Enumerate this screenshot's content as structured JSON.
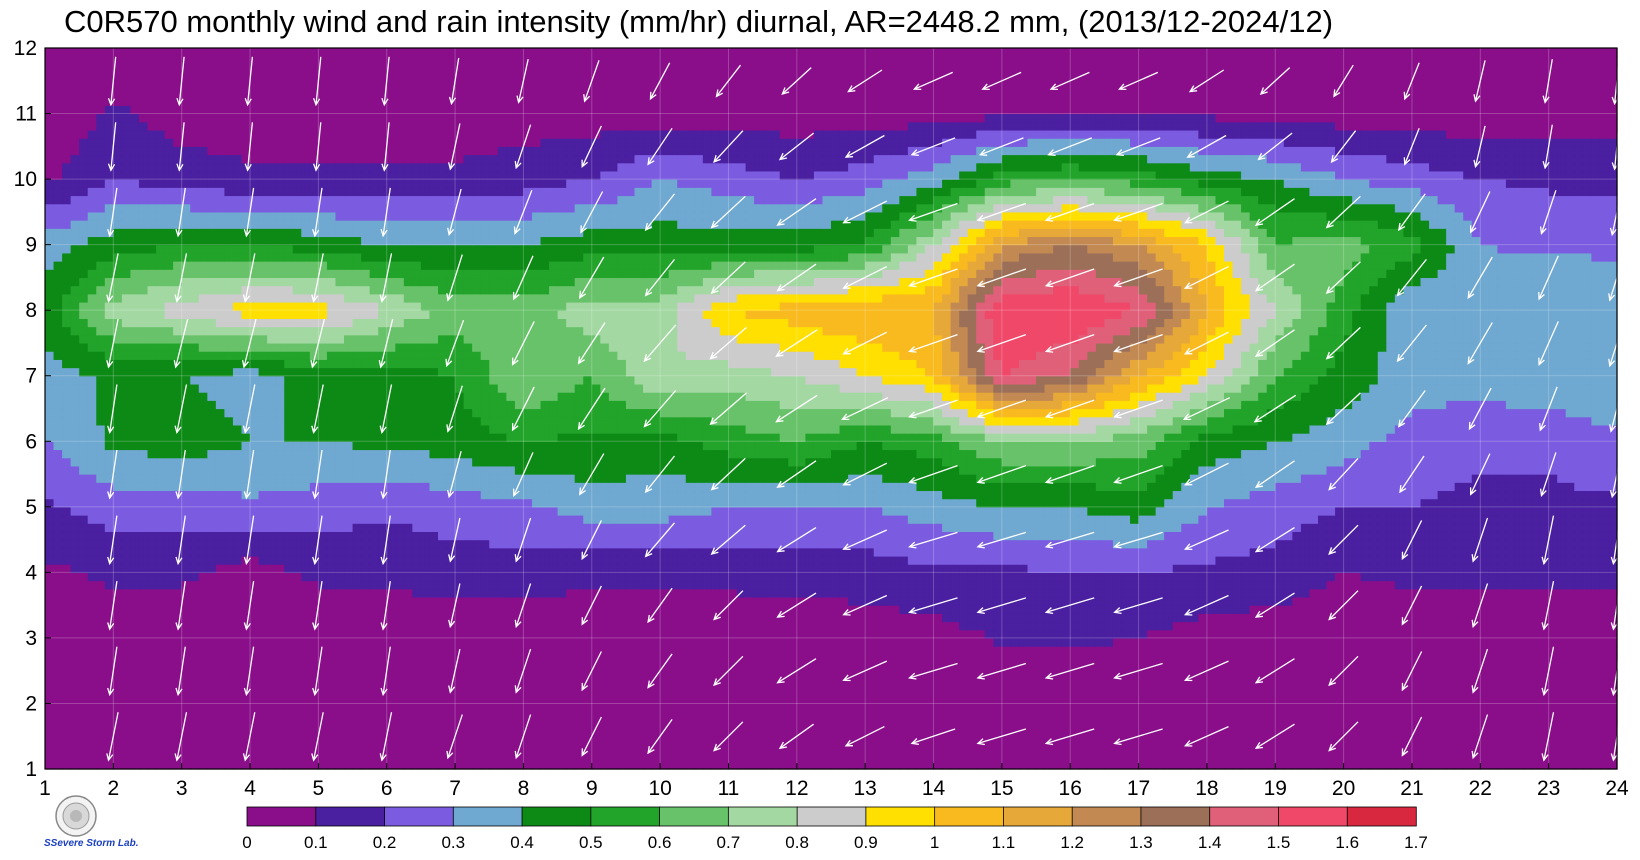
{
  "title": "C0R570 monthly wind and rain intensity (mm/hr) diurnal, AR=2448.2 mm, (2013/12-2024/12)",
  "logo_text": "SSevere Storm Lab.",
  "chart_data": {
    "type": "heatmap",
    "subtype": "filled-contour-with-wind-vectors",
    "title": "C0R570 monthly wind and rain intensity (mm/hr) diurnal, AR=2448.2 mm, (2013/12-2024/12)",
    "x": [
      1,
      2,
      3,
      4,
      5,
      6,
      7,
      8,
      9,
      10,
      11,
      12,
      13,
      14,
      15,
      16,
      17,
      18,
      19,
      20,
      21,
      22,
      23,
      24
    ],
    "y": [
      1,
      2,
      3,
      4,
      5,
      6,
      7,
      8,
      9,
      10,
      11,
      12
    ],
    "xlim": [
      1,
      24
    ],
    "ylim": [
      1,
      12
    ],
    "xticks": [
      "1",
      "2",
      "3",
      "4",
      "5",
      "6",
      "7",
      "8",
      "9",
      "10",
      "11",
      "12",
      "13",
      "14",
      "15",
      "16",
      "17",
      "18",
      "19",
      "20",
      "21",
      "22",
      "23",
      "24"
    ],
    "yticks": [
      "1",
      "2",
      "3",
      "4",
      "5",
      "6",
      "7",
      "8",
      "9",
      "10",
      "11",
      "12"
    ],
    "grid": true,
    "colorbar": {
      "orientation": "horizontal",
      "placement": "bottom",
      "levels": [
        "0",
        "0.1",
        "0.2",
        "0.3",
        "0.4",
        "0.5",
        "0.6",
        "0.7",
        "0.8",
        "0.9",
        "1",
        "1.1",
        "1.2",
        "1.3",
        "1.4",
        "1.5",
        "1.6",
        "1.7"
      ],
      "colors": [
        "#8a0e8a",
        "#4a1fa0",
        "#7b5ce0",
        "#6fa8d0",
        "#0d8a16",
        "#22a32a",
        "#68c26a",
        "#a3d8a3",
        "#cccccc",
        "#ffe000",
        "#f8ba1e",
        "#e7a83a",
        "#c28a52",
        "#9c7058",
        "#e0607a",
        "#f04868",
        "#d82840"
      ]
    },
    "values_mm_per_hr": [
      [
        0.0,
        0.0,
        0.0,
        0.0,
        0.0,
        0.0,
        0.0,
        0.0,
        0.0,
        0.0,
        0.0,
        0.0,
        0.0,
        0.0,
        0.0,
        0.0,
        0.0,
        0.0,
        0.0,
        0.0,
        0.0,
        0.0,
        0.0,
        0.0
      ],
      [
        0.0,
        0.0,
        0.0,
        0.0,
        0.0,
        0.0,
        0.0,
        0.0,
        0.0,
        0.0,
        0.0,
        0.0,
        0.0,
        0.0,
        0.0,
        0.0,
        0.0,
        0.0,
        0.0,
        0.0,
        0.0,
        0.0,
        0.0,
        0.0
      ],
      [
        0.03,
        0.03,
        0.03,
        0.03,
        0.03,
        0.03,
        0.03,
        0.03,
        0.03,
        0.03,
        0.03,
        0.03,
        0.04,
        0.06,
        0.11,
        0.12,
        0.1,
        0.06,
        0.04,
        0.03,
        0.03,
        0.03,
        0.03,
        0.03
      ],
      [
        0.08,
        0.12,
        0.12,
        0.05,
        0.12,
        0.12,
        0.15,
        0.15,
        0.12,
        0.12,
        0.13,
        0.14,
        0.15,
        0.18,
        0.18,
        0.2,
        0.2,
        0.18,
        0.16,
        0.1,
        0.12,
        0.13,
        0.13,
        0.13
      ],
      [
        0.18,
        0.25,
        0.25,
        0.28,
        0.25,
        0.22,
        0.25,
        0.28,
        0.35,
        0.35,
        0.3,
        0.3,
        0.3,
        0.35,
        0.4,
        0.4,
        0.45,
        0.3,
        0.25,
        0.2,
        0.2,
        0.18,
        0.18,
        0.18
      ],
      [
        0.3,
        0.42,
        0.45,
        0.4,
        0.4,
        0.42,
        0.45,
        0.5,
        0.48,
        0.45,
        0.55,
        0.6,
        0.5,
        0.55,
        0.7,
        0.7,
        0.65,
        0.45,
        0.4,
        0.35,
        0.25,
        0.22,
        0.22,
        0.28
      ],
      [
        0.35,
        0.42,
        0.4,
        0.35,
        0.45,
        0.45,
        0.5,
        0.7,
        0.6,
        0.8,
        0.75,
        0.8,
        0.9,
        1.0,
        1.5,
        1.4,
        1.1,
        0.9,
        0.6,
        0.45,
        0.35,
        0.35,
        0.38,
        0.4
      ],
      [
        0.45,
        0.75,
        0.85,
        0.95,
        0.95,
        0.8,
        0.65,
        0.65,
        0.75,
        0.75,
        1.0,
        1.05,
        1.1,
        1.1,
        1.6,
        1.6,
        1.5,
        1.1,
        0.8,
        0.55,
        0.3,
        0.35,
        0.4,
        0.38
      ],
      [
        0.35,
        0.45,
        0.5,
        0.5,
        0.45,
        0.4,
        0.4,
        0.4,
        0.45,
        0.45,
        0.45,
        0.45,
        0.5,
        0.8,
        1.2,
        1.3,
        1.2,
        1.0,
        0.6,
        0.65,
        0.55,
        0.3,
        0.28,
        0.28
      ],
      [
        0.08,
        0.2,
        0.15,
        0.12,
        0.12,
        0.12,
        0.12,
        0.15,
        0.2,
        0.3,
        0.25,
        0.2,
        0.25,
        0.35,
        0.55,
        0.6,
        0.55,
        0.45,
        0.4,
        0.3,
        0.25,
        0.2,
        0.18,
        0.18
      ],
      [
        0.0,
        0.12,
        0.05,
        0.05,
        0.05,
        0.05,
        0.05,
        0.05,
        0.05,
        0.05,
        0.05,
        0.05,
        0.05,
        0.05,
        0.08,
        0.1,
        0.1,
        0.08,
        0.06,
        0.05,
        0.05,
        0.04,
        0.04,
        0.04
      ],
      [
        0.0,
        0.0,
        0.0,
        0.0,
        0.0,
        0.0,
        0.0,
        0.0,
        0.0,
        0.0,
        0.0,
        0.0,
        0.0,
        0.0,
        0.0,
        0.0,
        0.0,
        0.0,
        0.0,
        0.0,
        0.0,
        0.0,
        0.0,
        0.0
      ]
    ],
    "wind_vector_layout": {
      "x": [
        2,
        3,
        4,
        5,
        6,
        7,
        8,
        9,
        10,
        11,
        12,
        13,
        14,
        15,
        16,
        17,
        18,
        19,
        20,
        21,
        22,
        23,
        24
      ],
      "y": [
        1.5,
        2.5,
        3.5,
        4.5,
        5.5,
        6.5,
        7.5,
        8.5,
        9.5,
        10.5,
        11.5
      ],
      "color": "#ffffff"
    },
    "wind_u": [
      [
        -0.2,
        -0.2,
        -0.2,
        -0.2,
        -0.2,
        -0.3,
        -0.3,
        -0.4,
        -0.5,
        -0.6,
        -0.7,
        -0.8,
        -0.9,
        -1.0,
        -1.0,
        -1.0,
        -0.9,
        -0.8,
        -0.6,
        -0.4,
        -0.3,
        -0.2,
        -0.15
      ],
      [
        -0.15,
        -0.15,
        -0.15,
        -0.15,
        -0.15,
        -0.2,
        -0.3,
        -0.4,
        -0.5,
        -0.6,
        -0.8,
        -0.9,
        -1.0,
        -1.0,
        -1.0,
        -1.0,
        -0.9,
        -0.8,
        -0.6,
        -0.4,
        -0.3,
        -0.2,
        -0.15
      ],
      [
        -0.15,
        -0.15,
        -0.15,
        -0.15,
        -0.15,
        -0.2,
        -0.3,
        -0.4,
        -0.5,
        -0.6,
        -0.8,
        -0.9,
        -1.0,
        -1.0,
        -1.0,
        -1.0,
        -0.9,
        -0.8,
        -0.6,
        -0.4,
        -0.3,
        -0.2,
        -0.15
      ],
      [
        -0.15,
        -0.15,
        -0.15,
        -0.15,
        -0.15,
        -0.2,
        -0.3,
        -0.4,
        -0.6,
        -0.7,
        -0.8,
        -0.9,
        -1.0,
        -1.0,
        -1.0,
        -1.0,
        -0.9,
        -0.8,
        -0.6,
        -0.4,
        -0.3,
        -0.2,
        -0.15
      ],
      [
        -0.15,
        -0.15,
        -0.15,
        -0.15,
        -0.15,
        -0.25,
        -0.4,
        -0.5,
        -0.6,
        -0.7,
        -0.8,
        -0.9,
        -1.0,
        -1.0,
        -1.0,
        -1.0,
        -0.9,
        -0.8,
        -0.6,
        -0.5,
        -0.4,
        -0.3,
        -0.2
      ],
      [
        -0.15,
        -0.2,
        -0.2,
        -0.2,
        -0.2,
        -0.3,
        -0.45,
        -0.55,
        -0.65,
        -0.75,
        -0.85,
        -0.95,
        -1.0,
        -1.0,
        -1.0,
        -1.0,
        -0.95,
        -0.85,
        -0.7,
        -0.55,
        -0.45,
        -0.35,
        -0.25
      ],
      [
        -0.2,
        -0.25,
        -0.25,
        -0.25,
        -0.25,
        -0.35,
        -0.45,
        -0.55,
        -0.65,
        -0.75,
        -0.85,
        -0.9,
        -1.0,
        -1.0,
        -1.0,
        -1.0,
        -0.9,
        -0.8,
        -0.7,
        -0.6,
        -0.5,
        -0.4,
        -0.3
      ],
      [
        -0.2,
        -0.2,
        -0.2,
        -0.2,
        -0.2,
        -0.3,
        -0.4,
        -0.5,
        -0.6,
        -0.7,
        -0.8,
        -0.9,
        -1.0,
        -1.0,
        -1.0,
        -1.0,
        -0.9,
        -0.8,
        -0.7,
        -0.6,
        -0.5,
        -0.4,
        -0.3
      ],
      [
        -0.15,
        -0.15,
        -0.15,
        -0.15,
        -0.15,
        -0.25,
        -0.35,
        -0.45,
        -0.6,
        -0.7,
        -0.8,
        -0.9,
        -1.0,
        -1.0,
        -1.0,
        -1.0,
        -0.9,
        -0.8,
        -0.7,
        -0.55,
        -0.4,
        -0.3,
        -0.2
      ],
      [
        -0.1,
        -0.1,
        -0.1,
        -0.1,
        -0.1,
        -0.2,
        -0.3,
        -0.4,
        -0.5,
        -0.6,
        -0.7,
        -0.8,
        -0.9,
        -0.9,
        -0.9,
        -0.9,
        -0.8,
        -0.7,
        -0.5,
        -0.3,
        -0.2,
        -0.15,
        -0.1
      ],
      [
        -0.1,
        -0.1,
        -0.1,
        -0.1,
        -0.1,
        -0.15,
        -0.2,
        -0.3,
        -0.4,
        -0.5,
        -0.6,
        -0.7,
        -0.8,
        -0.8,
        -0.8,
        -0.8,
        -0.7,
        -0.6,
        -0.4,
        -0.3,
        -0.2,
        -0.15,
        -0.1
      ]
    ],
    "wind_v": [
      [
        -1.0,
        -1.0,
        -1.0,
        -1.0,
        -1.0,
        -0.9,
        -0.9,
        -0.8,
        -0.7,
        -0.6,
        -0.5,
        -0.4,
        -0.3,
        -0.3,
        -0.3,
        -0.3,
        -0.4,
        -0.5,
        -0.6,
        -0.8,
        -0.9,
        -1.0,
        -1.0
      ],
      [
        -1.0,
        -1.0,
        -1.0,
        -1.0,
        -1.0,
        -0.9,
        -0.9,
        -0.8,
        -0.7,
        -0.6,
        -0.5,
        -0.4,
        -0.3,
        -0.3,
        -0.3,
        -0.3,
        -0.4,
        -0.5,
        -0.6,
        -0.8,
        -0.9,
        -1.0,
        -1.0
      ],
      [
        -1.0,
        -1.0,
        -1.0,
        -1.0,
        -1.0,
        -0.9,
        -0.9,
        -0.8,
        -0.7,
        -0.6,
        -0.5,
        -0.4,
        -0.3,
        -0.3,
        -0.3,
        -0.3,
        -0.4,
        -0.5,
        -0.6,
        -0.8,
        -0.9,
        -1.0,
        -1.0
      ],
      [
        -1.0,
        -1.0,
        -1.0,
        -1.0,
        -1.0,
        -0.9,
        -0.9,
        -0.8,
        -0.7,
        -0.6,
        -0.5,
        -0.4,
        -0.3,
        -0.3,
        -0.3,
        -0.3,
        -0.4,
        -0.5,
        -0.6,
        -0.8,
        -0.9,
        -1.0,
        -1.0
      ],
      [
        -1.0,
        -1.0,
        -1.0,
        -1.0,
        -1.0,
        -0.95,
        -0.9,
        -0.85,
        -0.75,
        -0.65,
        -0.55,
        -0.45,
        -0.35,
        -0.35,
        -0.35,
        -0.35,
        -0.45,
        -0.55,
        -0.65,
        -0.75,
        -0.85,
        -0.9,
        -0.95
      ],
      [
        -1.0,
        -1.0,
        -1.0,
        -1.0,
        -1.0,
        -0.95,
        -0.9,
        -0.85,
        -0.75,
        -0.65,
        -0.55,
        -0.45,
        -0.35,
        -0.35,
        -0.35,
        -0.35,
        -0.45,
        -0.55,
        -0.65,
        -0.75,
        -0.85,
        -0.9,
        -0.95
      ],
      [
        -1.0,
        -1.0,
        -1.0,
        -1.0,
        -1.0,
        -0.95,
        -0.9,
        -0.85,
        -0.75,
        -0.65,
        -0.55,
        -0.45,
        -0.35,
        -0.35,
        -0.35,
        -0.35,
        -0.45,
        -0.55,
        -0.65,
        -0.75,
        -0.85,
        -0.9,
        -0.95
      ],
      [
        -1.0,
        -1.0,
        -1.0,
        -1.0,
        -1.0,
        -0.95,
        -0.9,
        -0.85,
        -0.75,
        -0.65,
        -0.55,
        -0.45,
        -0.35,
        -0.35,
        -0.35,
        -0.35,
        -0.45,
        -0.55,
        -0.65,
        -0.75,
        -0.85,
        -0.9,
        -0.95
      ],
      [
        -1.0,
        -1.0,
        -1.0,
        -1.0,
        -1.0,
        -0.95,
        -0.9,
        -0.85,
        -0.75,
        -0.65,
        -0.55,
        -0.45,
        -0.35,
        -0.35,
        -0.35,
        -0.35,
        -0.45,
        -0.55,
        -0.65,
        -0.75,
        -0.85,
        -0.9,
        -0.95
      ],
      [
        -1.0,
        -1.0,
        -1.0,
        -1.0,
        -1.0,
        -0.95,
        -0.9,
        -0.85,
        -0.75,
        -0.65,
        -0.55,
        -0.45,
        -0.35,
        -0.35,
        -0.35,
        -0.35,
        -0.45,
        -0.55,
        -0.65,
        -0.75,
        -0.85,
        -0.9,
        -0.95
      ],
      [
        -1.0,
        -1.0,
        -1.0,
        -1.0,
        -1.0,
        -0.95,
        -0.9,
        -0.85,
        -0.75,
        -0.65,
        -0.55,
        -0.45,
        -0.35,
        -0.35,
        -0.35,
        -0.35,
        -0.45,
        -0.55,
        -0.65,
        -0.75,
        -0.85,
        -0.9,
        -0.95
      ]
    ]
  }
}
